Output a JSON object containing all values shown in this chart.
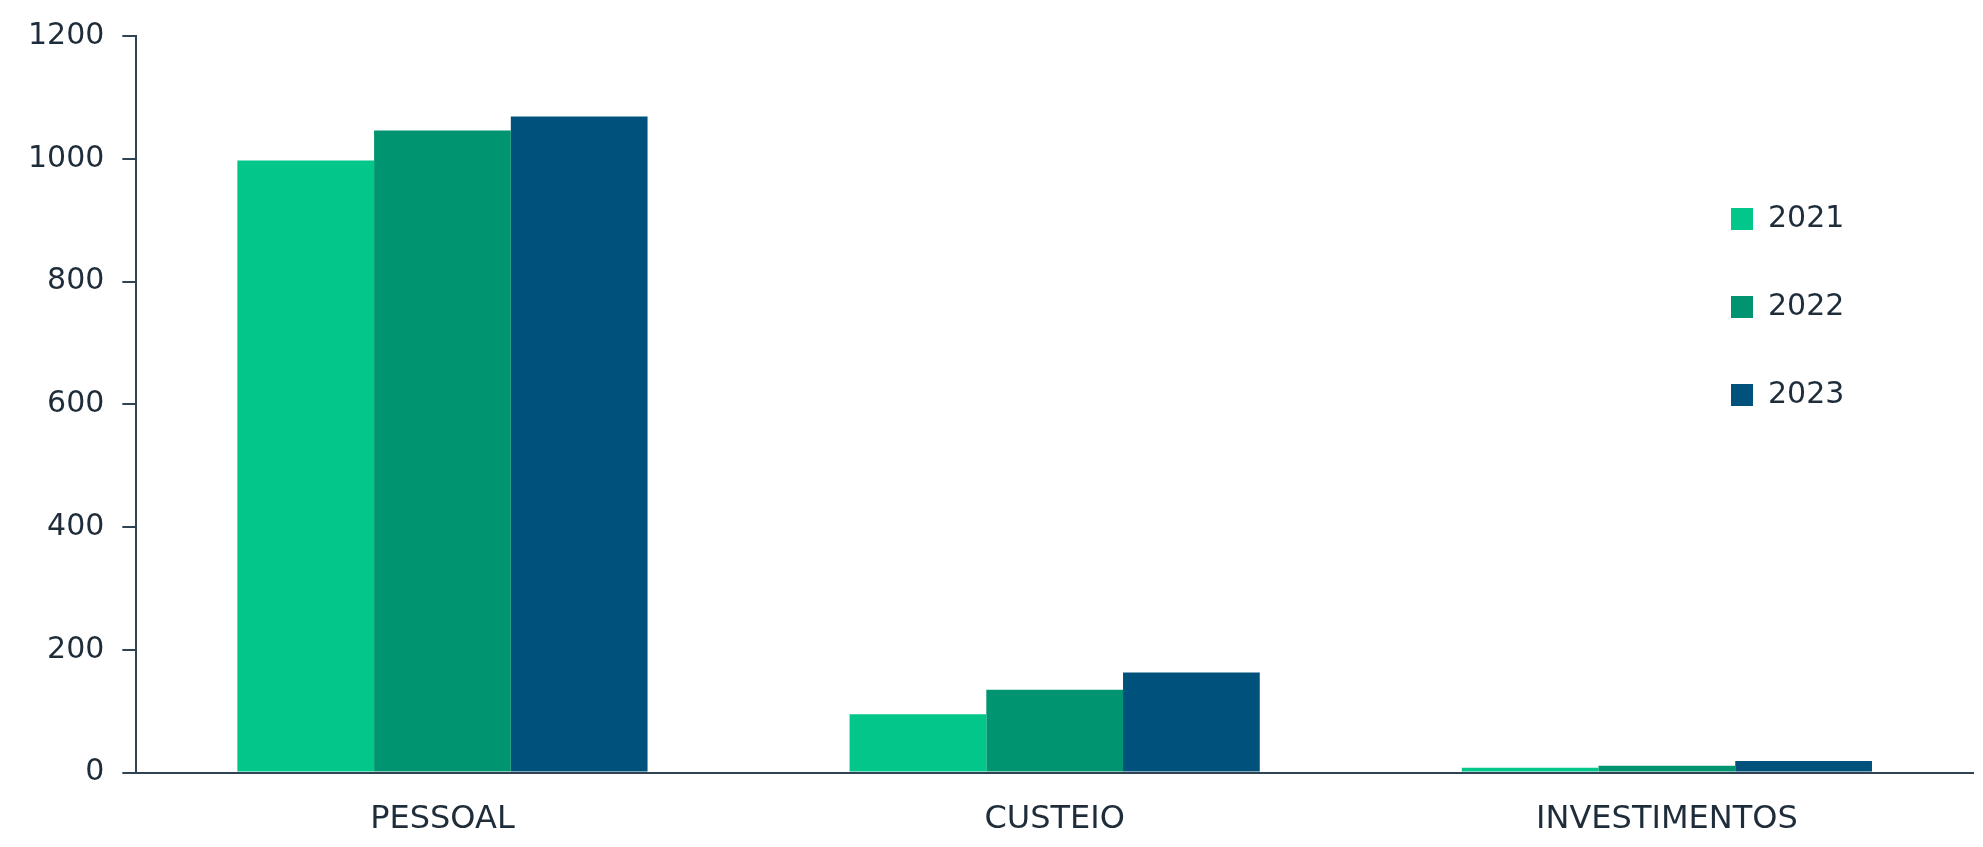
{
  "chart_data": {
    "type": "bar",
    "categories": [
      "PESSOAL",
      "CUSTEIO",
      "INVESTIMENTOS"
    ],
    "series": [
      {
        "name": "2021",
        "color": "#03c68b",
        "values": [
          997,
          95,
          8
        ]
      },
      {
        "name": "2022",
        "color": "#009470",
        "values": [
          1046,
          135,
          11
        ]
      },
      {
        "name": "2023",
        "color": "#00517c",
        "values": [
          1069,
          163,
          19
        ]
      }
    ],
    "ylim": [
      0,
      1200
    ],
    "yticks": [
      0,
      200,
      400,
      600,
      800,
      1000,
      1200
    ],
    "grid": false,
    "legend": "top right"
  }
}
